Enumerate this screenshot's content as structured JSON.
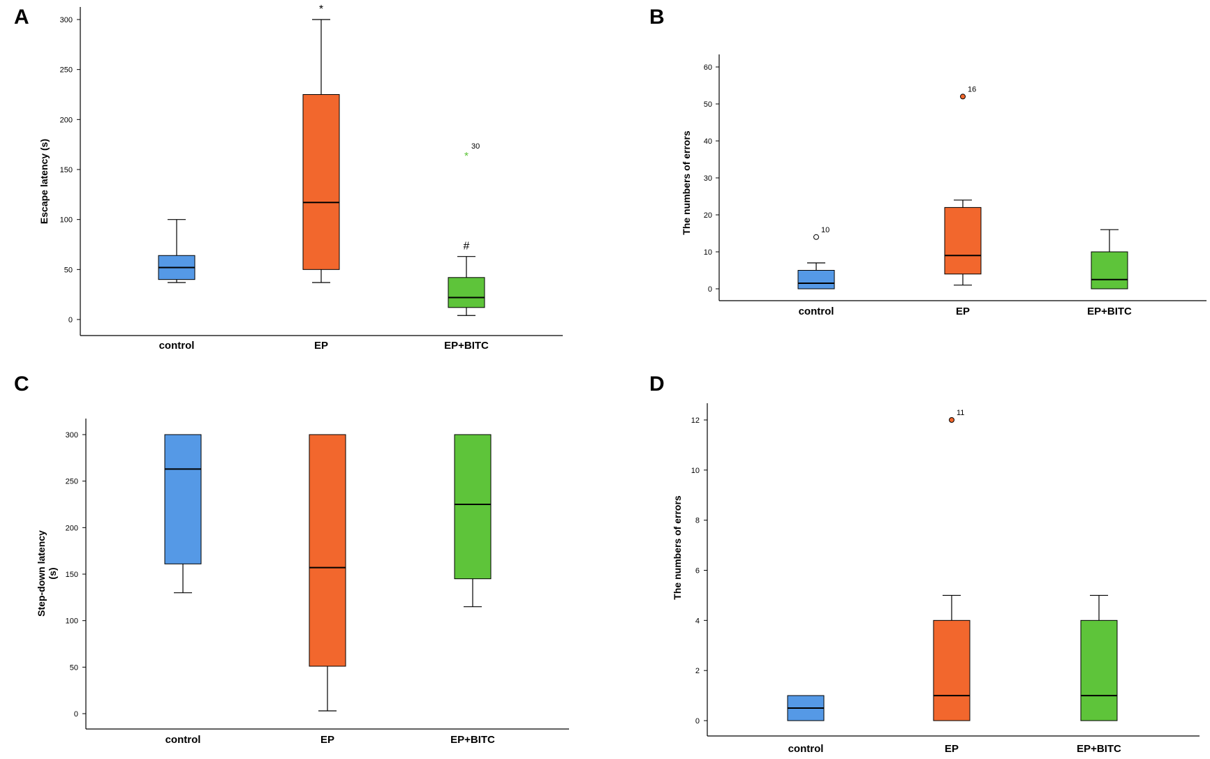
{
  "colors": {
    "control": "#5599e6",
    "EP": "#f2672d",
    "EP+BITC": "#5ec43a",
    "axis": "#000000"
  },
  "chart_data": [
    {
      "panel": "A",
      "type": "box",
      "title": "",
      "ylabel": "Escape latency (s)",
      "ylim": [
        0,
        300
      ],
      "yticks": [
        0,
        50,
        100,
        150,
        200,
        250,
        300
      ],
      "categories": [
        "control",
        "EP",
        "EP+BITC"
      ],
      "boxes": [
        {
          "name": "control",
          "whisker_low": 37,
          "q1": 40,
          "median": 52,
          "q3": 64,
          "whisker_high": 100,
          "outliers": [],
          "sig": ""
        },
        {
          "name": "EP",
          "whisker_low": 37,
          "q1": 50,
          "median": 117,
          "q3": 225,
          "whisker_high": 300,
          "outliers": [],
          "sig": "*"
        },
        {
          "name": "EP+BITC",
          "whisker_low": 4,
          "q1": 12,
          "median": 22,
          "q3": 42,
          "whisker_high": 63,
          "outliers": [
            {
              "value": 166,
              "label": "30",
              "marker": "star"
            }
          ],
          "sig": "#"
        }
      ]
    },
    {
      "panel": "B",
      "type": "box",
      "title": "",
      "ylabel": "The numbers of errors",
      "ylim": [
        0,
        60
      ],
      "yticks": [
        0,
        10,
        20,
        30,
        40,
        50,
        60
      ],
      "categories": [
        "control",
        "EP",
        "EP+BITC"
      ],
      "boxes": [
        {
          "name": "control",
          "whisker_low": 0,
          "q1": 0,
          "median": 1.5,
          "q3": 5,
          "whisker_high": 7,
          "outliers": [
            {
              "value": 14,
              "label": "10",
              "marker": "circle-open"
            }
          ],
          "sig": ""
        },
        {
          "name": "EP",
          "whisker_low": 1,
          "q1": 4,
          "median": 9,
          "q3": 22,
          "whisker_high": 24,
          "outliers": [
            {
              "value": 52,
              "label": "16",
              "marker": "circle-filled"
            }
          ],
          "sig": ""
        },
        {
          "name": "EP+BITC",
          "whisker_low": 0,
          "q1": 0,
          "median": 2.5,
          "q3": 10,
          "whisker_high": 16,
          "outliers": [],
          "sig": ""
        }
      ]
    },
    {
      "panel": "C",
      "type": "box",
      "title": "",
      "ylabel": "Step-down latency (s)",
      "ylabel_lines": [
        "Step-down latency",
        "(s)"
      ],
      "ylim": [
        0,
        300
      ],
      "yticks": [
        0,
        50,
        100,
        150,
        200,
        250,
        300
      ],
      "categories": [
        "control",
        "EP",
        "EP+BITC"
      ],
      "boxes": [
        {
          "name": "control",
          "whisker_low": 130,
          "q1": 161,
          "median": 263,
          "q3": 300,
          "whisker_high": 300,
          "outliers": [],
          "sig": ""
        },
        {
          "name": "EP",
          "whisker_low": 3,
          "q1": 51,
          "median": 157,
          "q3": 300,
          "whisker_high": 300,
          "outliers": [],
          "sig": ""
        },
        {
          "name": "EP+BITC",
          "whisker_low": 115,
          "q1": 145,
          "median": 225,
          "q3": 300,
          "whisker_high": 300,
          "outliers": [],
          "sig": ""
        }
      ]
    },
    {
      "panel": "D",
      "type": "box",
      "title": "",
      "ylabel": "The numbers of errors",
      "ylim": [
        0,
        12
      ],
      "yticks": [
        0,
        2,
        4,
        6,
        8,
        10,
        12
      ],
      "categories": [
        "control",
        "EP",
        "EP+BITC"
      ],
      "boxes": [
        {
          "name": "control",
          "whisker_low": 0,
          "q1": 0,
          "median": 0.5,
          "q3": 1,
          "whisker_high": 1,
          "outliers": [],
          "sig": ""
        },
        {
          "name": "EP",
          "whisker_low": 0,
          "q1": 0,
          "median": 1,
          "q3": 4,
          "whisker_high": 5,
          "outliers": [
            {
              "value": 12,
              "label": "11",
              "marker": "circle-filled"
            }
          ],
          "sig": ""
        },
        {
          "name": "EP+BITC",
          "whisker_low": 0,
          "q1": 0,
          "median": 1,
          "q3": 4,
          "whisker_high": 5,
          "outliers": [],
          "sig": ""
        }
      ]
    }
  ]
}
